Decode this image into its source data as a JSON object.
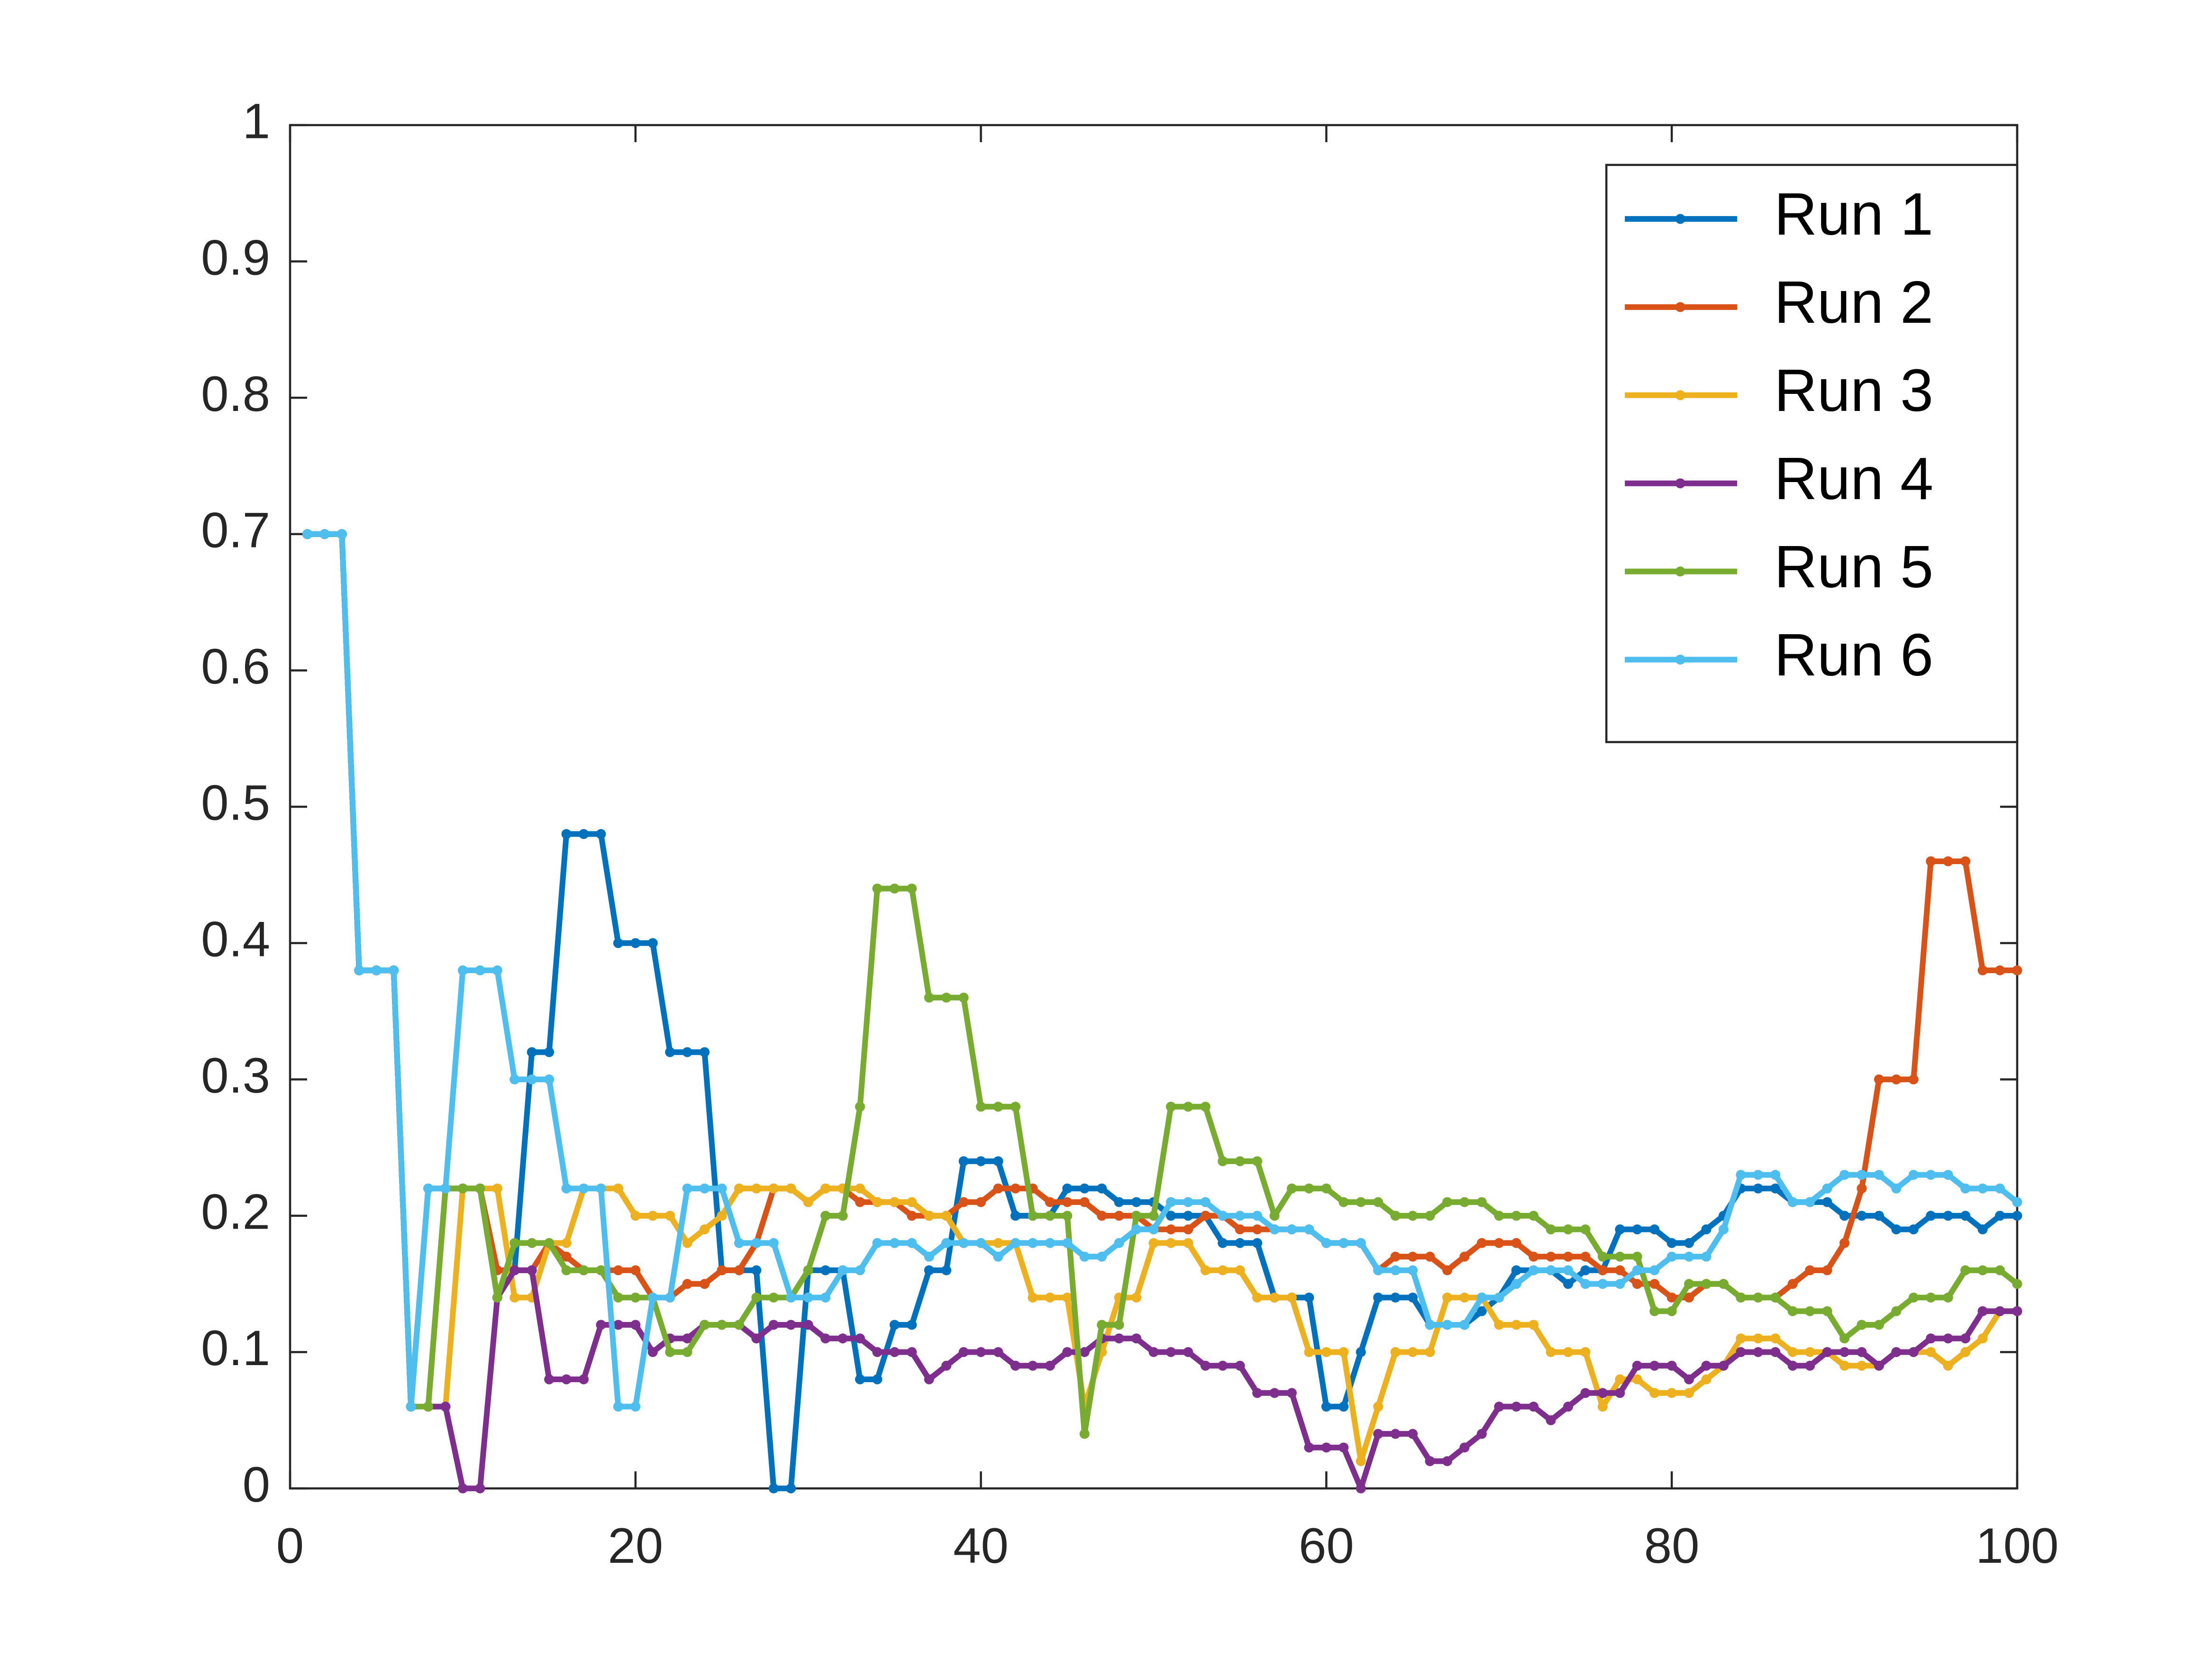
{
  "chart_data": {
    "type": "line",
    "x": [
      1,
      2,
      3,
      4,
      5,
      6,
      7,
      8,
      9,
      10,
      11,
      12,
      13,
      14,
      15,
      16,
      17,
      18,
      19,
      20,
      21,
      22,
      23,
      24,
      25,
      26,
      27,
      28,
      29,
      30,
      31,
      32,
      33,
      34,
      35,
      36,
      37,
      38,
      39,
      40,
      41,
      42,
      43,
      44,
      45,
      46,
      47,
      48,
      49,
      50,
      51,
      52,
      53,
      54,
      55,
      56,
      57,
      58,
      59,
      60,
      61,
      62,
      63,
      64,
      65,
      66,
      67,
      68,
      69,
      70,
      71,
      72,
      73,
      74,
      75,
      76,
      77,
      78,
      79,
      80,
      81,
      82,
      83,
      84,
      85,
      86,
      87,
      88,
      89,
      90,
      91,
      92,
      93,
      94,
      95,
      96,
      97,
      98,
      99,
      100
    ],
    "series": [
      {
        "name": "Run 1",
        "color": "#0072bd",
        "values": [
          0.7,
          0.7,
          0.7,
          0.38,
          0.38,
          0.38,
          0.06,
          0.22,
          0.22,
          0.22,
          0.22,
          0.14,
          0.16,
          0.32,
          0.32,
          0.48,
          0.48,
          0.48,
          0.4,
          0.4,
          0.4,
          0.32,
          0.32,
          0.32,
          0.16,
          0.16,
          0.16,
          0,
          0,
          0.16,
          0.16,
          0.16,
          0.08,
          0.08,
          0.12,
          0.12,
          0.16,
          0.16,
          0.24,
          0.24,
          0.24,
          0.2,
          0.2,
          0.2,
          0.22,
          0.22,
          0.22,
          0.21,
          0.21,
          0.21,
          0.2,
          0.2,
          0.2,
          0.18,
          0.18,
          0.18,
          0.14,
          0.14,
          0.14,
          0.06,
          0.06,
          0.1,
          0.14,
          0.14,
          0.14,
          0.12,
          0.12,
          0.12,
          0.13,
          0.14,
          0.16,
          0.16,
          0.16,
          0.15,
          0.16,
          0.16,
          0.19,
          0.19,
          0.19,
          0.18,
          0.18,
          0.19,
          0.2,
          0.22,
          0.22,
          0.22,
          0.21,
          0.21,
          0.21,
          0.2,
          0.2,
          0.2,
          0.19,
          0.19,
          0.2,
          0.2,
          0.2,
          0.19,
          0.2,
          0.2
        ]
      },
      {
        "name": "Run 2",
        "color": "#d95319",
        "values": [
          0.7,
          0.7,
          0.7,
          0.38,
          0.38,
          0.38,
          0.06,
          0.06,
          0.22,
          0.22,
          0.22,
          0.16,
          0.16,
          0.16,
          0.18,
          0.17,
          0.16,
          0.16,
          0.16,
          0.16,
          0.14,
          0.14,
          0.15,
          0.15,
          0.16,
          0.16,
          0.18,
          0.22,
          0.22,
          0.21,
          0.22,
          0.22,
          0.21,
          0.21,
          0.21,
          0.2,
          0.2,
          0.2,
          0.21,
          0.21,
          0.22,
          0.22,
          0.22,
          0.21,
          0.21,
          0.21,
          0.2,
          0.2,
          0.2,
          0.19,
          0.19,
          0.19,
          0.2,
          0.2,
          0.19,
          0.19,
          0.19,
          0.19,
          0.19,
          0.18,
          0.18,
          0.18,
          0.16,
          0.17,
          0.17,
          0.17,
          0.16,
          0.17,
          0.18,
          0.18,
          0.18,
          0.17,
          0.17,
          0.17,
          0.17,
          0.16,
          0.16,
          0.15,
          0.15,
          0.14,
          0.14,
          0.15,
          0.15,
          0.14,
          0.14,
          0.14,
          0.15,
          0.16,
          0.16,
          0.18,
          0.22,
          0.3,
          0.3,
          0.3,
          0.46,
          0.46,
          0.46,
          0.38,
          0.38,
          0.38
        ]
      },
      {
        "name": "Run 3",
        "color": "#edb120",
        "values": [
          0.7,
          0.7,
          0.7,
          0.38,
          0.38,
          0.38,
          0.06,
          0.06,
          0.06,
          0.22,
          0.22,
          0.22,
          0.14,
          0.14,
          0.18,
          0.18,
          0.22,
          0.22,
          0.22,
          0.2,
          0.2,
          0.2,
          0.18,
          0.19,
          0.2,
          0.22,
          0.22,
          0.22,
          0.22,
          0.21,
          0.22,
          0.22,
          0.22,
          0.21,
          0.21,
          0.21,
          0.2,
          0.2,
          0.18,
          0.18,
          0.18,
          0.18,
          0.14,
          0.14,
          0.14,
          0.06,
          0.1,
          0.14,
          0.14,
          0.18,
          0.18,
          0.18,
          0.16,
          0.16,
          0.16,
          0.14,
          0.14,
          0.14,
          0.1,
          0.1,
          0.1,
          0.02,
          0.06,
          0.1,
          0.1,
          0.1,
          0.14,
          0.14,
          0.14,
          0.12,
          0.12,
          0.12,
          0.1,
          0.1,
          0.1,
          0.06,
          0.08,
          0.08,
          0.07,
          0.07,
          0.07,
          0.08,
          0.09,
          0.11,
          0.11,
          0.11,
          0.1,
          0.1,
          0.1,
          0.09,
          0.09,
          0.09,
          0.1,
          0.1,
          0.1,
          0.09,
          0.1,
          0.11,
          0.13,
          0.13
        ]
      },
      {
        "name": "Run 4",
        "color": "#7e2f8e",
        "values": [
          0.7,
          0.7,
          0.7,
          0.38,
          0.38,
          0.38,
          0.06,
          0.06,
          0.06,
          0,
          0,
          0.14,
          0.16,
          0.16,
          0.08,
          0.08,
          0.08,
          0.12,
          0.12,
          0.12,
          0.1,
          0.11,
          0.11,
          0.12,
          0.12,
          0.12,
          0.11,
          0.12,
          0.12,
          0.12,
          0.11,
          0.11,
          0.11,
          0.1,
          0.1,
          0.1,
          0.08,
          0.09,
          0.1,
          0.1,
          0.1,
          0.09,
          0.09,
          0.09,
          0.1,
          0.1,
          0.11,
          0.11,
          0.11,
          0.1,
          0.1,
          0.1,
          0.09,
          0.09,
          0.09,
          0.07,
          0.07,
          0.07,
          0.03,
          0.03,
          0.03,
          0,
          0.04,
          0.04,
          0.04,
          0.02,
          0.02,
          0.03,
          0.04,
          0.06,
          0.06,
          0.06,
          0.05,
          0.06,
          0.07,
          0.07,
          0.07,
          0.09,
          0.09,
          0.09,
          0.08,
          0.09,
          0.09,
          0.1,
          0.1,
          0.1,
          0.09,
          0.09,
          0.1,
          0.1,
          0.1,
          0.09,
          0.1,
          0.1,
          0.11,
          0.11,
          0.11,
          0.13,
          0.13,
          0.13
        ]
      },
      {
        "name": "Run 5",
        "color": "#77ac30",
        "values": [
          0.7,
          0.7,
          0.7,
          0.38,
          0.38,
          0.38,
          0.06,
          0.06,
          0.22,
          0.22,
          0.22,
          0.14,
          0.18,
          0.18,
          0.18,
          0.16,
          0.16,
          0.16,
          0.14,
          0.14,
          0.14,
          0.1,
          0.1,
          0.12,
          0.12,
          0.12,
          0.14,
          0.14,
          0.14,
          0.16,
          0.2,
          0.2,
          0.28,
          0.44,
          0.44,
          0.44,
          0.36,
          0.36,
          0.36,
          0.28,
          0.28,
          0.28,
          0.2,
          0.2,
          0.2,
          0.04,
          0.12,
          0.12,
          0.2,
          0.2,
          0.28,
          0.28,
          0.28,
          0.24,
          0.24,
          0.24,
          0.2,
          0.22,
          0.22,
          0.22,
          0.21,
          0.21,
          0.21,
          0.2,
          0.2,
          0.2,
          0.21,
          0.21,
          0.21,
          0.2,
          0.2,
          0.2,
          0.19,
          0.19,
          0.19,
          0.17,
          0.17,
          0.17,
          0.13,
          0.13,
          0.15,
          0.15,
          0.15,
          0.14,
          0.14,
          0.14,
          0.13,
          0.13,
          0.13,
          0.11,
          0.12,
          0.12,
          0.13,
          0.14,
          0.14,
          0.14,
          0.16,
          0.16,
          0.16,
          0.15
        ]
      },
      {
        "name": "Run 6",
        "color": "#4dbeee",
        "values": [
          0.7,
          0.7,
          0.7,
          0.38,
          0.38,
          0.38,
          0.06,
          0.22,
          0.22,
          0.38,
          0.38,
          0.38,
          0.3,
          0.3,
          0.3,
          0.22,
          0.22,
          0.22,
          0.06,
          0.06,
          0.14,
          0.14,
          0.22,
          0.22,
          0.22,
          0.18,
          0.18,
          0.18,
          0.14,
          0.14,
          0.14,
          0.16,
          0.16,
          0.18,
          0.18,
          0.18,
          0.17,
          0.18,
          0.18,
          0.18,
          0.17,
          0.18,
          0.18,
          0.18,
          0.18,
          0.17,
          0.17,
          0.18,
          0.19,
          0.19,
          0.21,
          0.21,
          0.21,
          0.2,
          0.2,
          0.2,
          0.19,
          0.19,
          0.19,
          0.18,
          0.18,
          0.18,
          0.16,
          0.16,
          0.16,
          0.12,
          0.12,
          0.12,
          0.14,
          0.14,
          0.15,
          0.16,
          0.16,
          0.16,
          0.15,
          0.15,
          0.15,
          0.16,
          0.16,
          0.17,
          0.17,
          0.17,
          0.19,
          0.23,
          0.23,
          0.23,
          0.21,
          0.21,
          0.22,
          0.23,
          0.23,
          0.23,
          0.22,
          0.23,
          0.23,
          0.23,
          0.22,
          0.22,
          0.22,
          0.21
        ]
      }
    ],
    "xlim": [
      0,
      100
    ],
    "xticks": [
      0,
      20,
      40,
      60,
      80,
      100
    ],
    "ylim": [
      0,
      1
    ],
    "yticks": [
      0,
      0.1,
      0.2,
      0.3,
      0.4,
      0.5,
      0.6,
      0.7,
      0.8,
      0.9,
      1
    ],
    "grid": false,
    "legend": "top-right"
  }
}
